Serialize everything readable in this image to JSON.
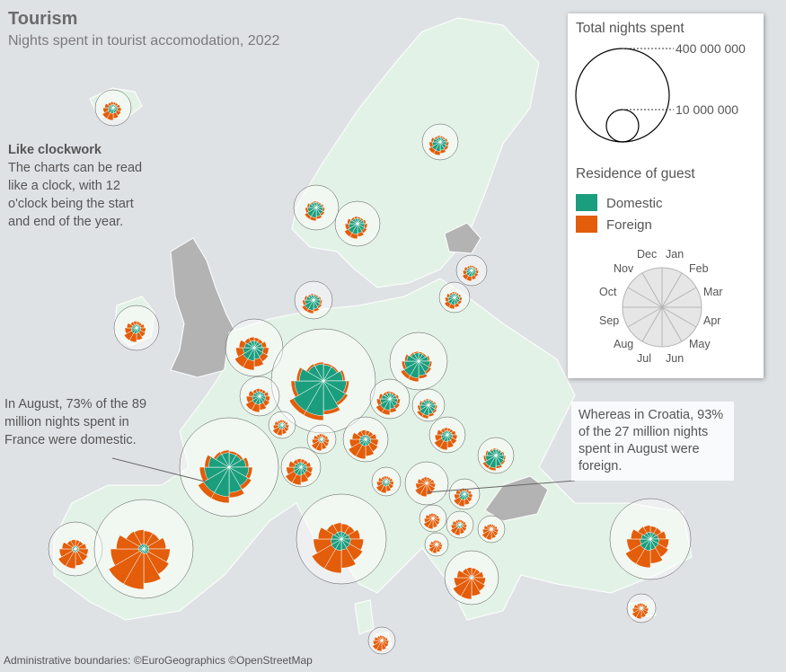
{
  "title": "Tourism",
  "subtitle": "Nights spent in tourist accomodation, 2022",
  "intro": {
    "heading": "Like clockwork",
    "body": "The charts can be read like a clock, with 12 o'clock being the start and end of the year."
  },
  "annotations": {
    "france": "In August, 73% of the 89 million nights spent in France were domestic.",
    "croatia": "Whereas in Croatia, 93% of the 27 million nights spent in August were foreign."
  },
  "legend": {
    "size_title": "Total nights spent",
    "size_large": "400 000 000",
    "size_small": "10 000 000",
    "color_title": "Residence of guest",
    "domestic_label": "Domestic",
    "foreign_label": "Foreign",
    "months": [
      "Dec",
      "Jan",
      "Feb",
      "Mar",
      "Apr",
      "May",
      "Jun",
      "Jul",
      "Aug",
      "Sep",
      "Oct",
      "Nov"
    ]
  },
  "colors": {
    "domestic": "#1a9e7e",
    "foreign": "#e35d0a",
    "land": "#e3f2e6",
    "no_data": "#b3b3b3",
    "sea": "#dfe2e5"
  },
  "source": "Administrative boundaries: ©EuroGeographics ©OpenStreetMap"
}
